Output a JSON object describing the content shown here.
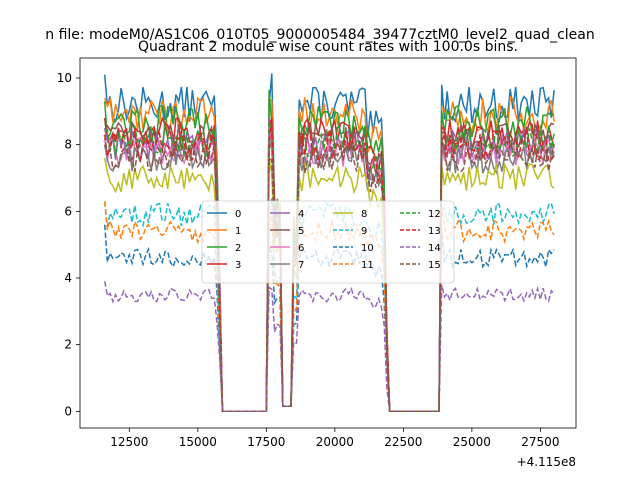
{
  "figure": {
    "suptitle": "n file: modeM0/AS1C06_010T05_9000005484_39477cztM0_level2_quad_clean",
    "title": "Quadrant 2 module wise count rates with 100.0s bins."
  },
  "chart_data": {
    "type": "line",
    "title": "Quadrant 2 module wise count rates with 100.0s bins.",
    "xlabel": "",
    "ylabel": "",
    "x_offset_label": "+4.115e8",
    "xlim": [
      10700,
      28800
    ],
    "ylim": [
      -0.5,
      10.6
    ],
    "xticks": [
      12500,
      15000,
      17500,
      20000,
      22500,
      25000,
      27500
    ],
    "xtick_labels": [
      "12500",
      "15000",
      "17500",
      "20000",
      "22500",
      "25000",
      "27500"
    ],
    "yticks": [
      0,
      2,
      4,
      6,
      8,
      10
    ],
    "ytick_labels": [
      "0",
      "2",
      "4",
      "6",
      "8",
      "10"
    ],
    "segments": [
      {
        "from": 11600,
        "to": 15600,
        "phase": "on"
      },
      {
        "from": 15700,
        "to": 15900,
        "phase": "fall"
      },
      {
        "from": 15900,
        "to": 17500,
        "phase": "zero"
      },
      {
        "from": 17600,
        "to": 18000,
        "phase": "spike"
      },
      {
        "from": 18100,
        "to": 18500,
        "phase": "dip"
      },
      {
        "from": 18600,
        "to": 21200,
        "phase": "on"
      },
      {
        "from": 21300,
        "to": 21700,
        "phase": "gap"
      },
      {
        "from": 21800,
        "to": 22100,
        "phase": "fall"
      },
      {
        "from": 22100,
        "to": 23800,
        "phase": "zero"
      },
      {
        "from": 23900,
        "to": 28000,
        "phase": "on"
      }
    ],
    "legend": {
      "location": "center",
      "columns": 4
    },
    "series": [
      {
        "name": "0",
        "level": 9.2,
        "start": 10.1,
        "style": "solid",
        "color": "#1f77b4"
      },
      {
        "name": "1",
        "level": 8.9,
        "start": 9.4,
        "style": "solid",
        "color": "#ff7f0e"
      },
      {
        "name": "2",
        "level": 8.7,
        "start": 9.3,
        "style": "solid",
        "color": "#2ca02c"
      },
      {
        "name": "3",
        "level": 8.3,
        "start": 8.8,
        "style": "solid",
        "color": "#d62728"
      },
      {
        "name": "4",
        "level": 8.0,
        "start": 8.5,
        "style": "solid",
        "color": "#9467bd"
      },
      {
        "name": "5",
        "level": 8.2,
        "start": 8.6,
        "style": "solid",
        "color": "#8c564b"
      },
      {
        "name": "6",
        "level": 7.8,
        "start": 8.2,
        "style": "solid",
        "color": "#e377c2"
      },
      {
        "name": "7",
        "level": 7.6,
        "start": 8.0,
        "style": "solid",
        "color": "#7f7f7f"
      },
      {
        "name": "8",
        "level": 7.0,
        "start": 7.6,
        "style": "solid",
        "color": "#bcbd22"
      },
      {
        "name": "9",
        "level": 5.9,
        "start": 6.3,
        "style": "dashed",
        "color": "#17becf"
      },
      {
        "name": "10",
        "level": 4.6,
        "start": 5.6,
        "style": "dashed",
        "color": "#1f77b4"
      },
      {
        "name": "11",
        "level": 5.4,
        "start": 6.3,
        "style": "dashed",
        "color": "#ff7f0e"
      },
      {
        "name": "12",
        "level": 8.1,
        "start": 8.4,
        "style": "dashed",
        "color": "#2ca02c"
      },
      {
        "name": "13",
        "level": 8.0,
        "start": 8.3,
        "style": "dashed",
        "color": "#d62728"
      },
      {
        "name": "14",
        "level": 3.5,
        "start": 3.9,
        "style": "dashed",
        "color": "#9467bd"
      },
      {
        "name": "15",
        "level": 7.6,
        "start": 8.0,
        "style": "dashed",
        "color": "#8c564b"
      }
    ]
  }
}
